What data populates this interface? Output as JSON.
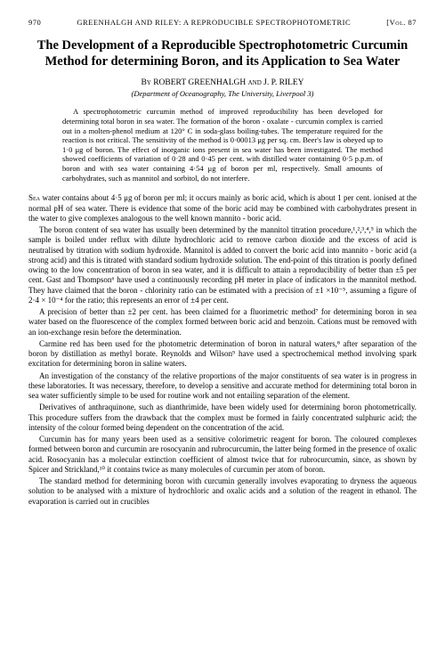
{
  "page_number": "970",
  "running_head": "GREENHALGH AND RILEY: A REPRODUCIBLE SPECTROPHOTOMETRIC",
  "vol": "[Vol. 87",
  "title": "The Development of a Reproducible Spectrophotometric Curcumin Method for determining Boron, and its Application to Sea Water",
  "byline_prefix": "By",
  "authors": "ROBERT GREENHALGH and J. P. RILEY",
  "affiliation": "(Department of Oceanography, The University, Liverpool 3)",
  "abstract": "A spectrophotometric curcumin method of improved reproducibility has been developed for determining total boron in sea water. The formation of the boron - oxalate - curcumin complex is carried out in a molten-phenol medium at 120° C in soda-glass boiling-tubes. The temperature required for the reaction is not critical. The sensitivity of the method is 0·00013 μg per sq. cm. Beer's law is obeyed up to 1·0 μg of boron. The effect of inorganic ions present in sea water has been investigated. The method showed coefficients of variation of 0·28 and 0·45 per cent. with distilled water containing 0·5 p.p.m. of boron and with sea water containing 4·54 μg of boron per ml, respectively. Small amounts of carbohydrates, such as mannitol and sorbitol, do not interfere.",
  "para1_lead": "Sea",
  "para1": " water contains about 4·5 μg of boron per ml; it occurs mainly as boric acid, which is about 1 per cent. ionised at the normal pH of sea water. There is evidence that some of the boric acid may be combined with carbohydrates present in the water to give complexes analogous to the well known mannito - boric acid.",
  "para2": "The boron content of sea water has usually been determined by the mannitol titration procedure,¹,²,³,⁴,⁵ in which the sample is boiled under reflux with dilute hydrochloric acid to remove carbon dioxide and the excess of acid is neutralised by titration with sodium hydroxide. Mannitol is added to convert the boric acid into mannito - boric acid (a strong acid) and this is titrated with standard sodium hydroxide solution. The end-point of this titration is poorly defined owing to the low concentration of boron in sea water, and it is difficult to attain a reproducibility of better than ±5 per cent. Gast and Thompson⁶ have used a continuously recording pH meter in place of indicators in the mannitol method. They have claimed that the boron - chlorinity ratio can be estimated with a precision of ±1 ×10⁻⁵, assuming a figure of 2·4 × 10⁻⁴ for the ratio; this represents an error of ±4 per cent.",
  "para3": "A precision of better than ±2 per cent. has been claimed for a fluorimetric method⁷ for determining boron in sea water based on the fluorescence of the complex formed between boric acid and benzoin. Cations must be removed with an ion-exchange resin before the determination.",
  "para4": "Carmine red has been used for the photometric determination of boron in natural waters,⁸ after separation of the boron by distillation as methyl borate. Reynolds and Wilson⁹ have used a spectrochemical method involving spark excitation for determining boron in saline waters.",
  "para5": "An investigation of the constancy of the relative proportions of the major constituents of sea water is in progress in these laboratories. It was necessary, therefore, to develop a sensitive and accurate method for determining total boron in sea water sufficiently simple to be used for routine work and not entailing separation of the element.",
  "para6": "Derivatives of anthraquinone, such as dianthrimide, have been widely used for determining boron photometrically. This procedure suffers from the drawback that the complex must be formed in fairly concentrated sulphuric acid; the intensity of the colour formed being dependent on the concentration of the acid.",
  "para7": "Curcumin has for many years been used as a sensitive colorimetric reagent for boron. The coloured complexes formed between boron and curcumin are rosocyanin and rubrocurcumin, the latter being formed in the presence of oxalic acid. Rosocyanin has a molecular extinction coefficient of almost twice that for rubrocurcumin, since, as shown by Spicer and Strickland,¹⁰ it contains twice as many molecules of curcumin per atom of boron.",
  "para8": "The standard method for determining boron with curcumin generally involves evaporating to dryness the aqueous solution to be analysed with a mixture of hydrochloric and oxalic acids and a solution of the reagent in ethanol. The evaporation is carried out in crucibles"
}
